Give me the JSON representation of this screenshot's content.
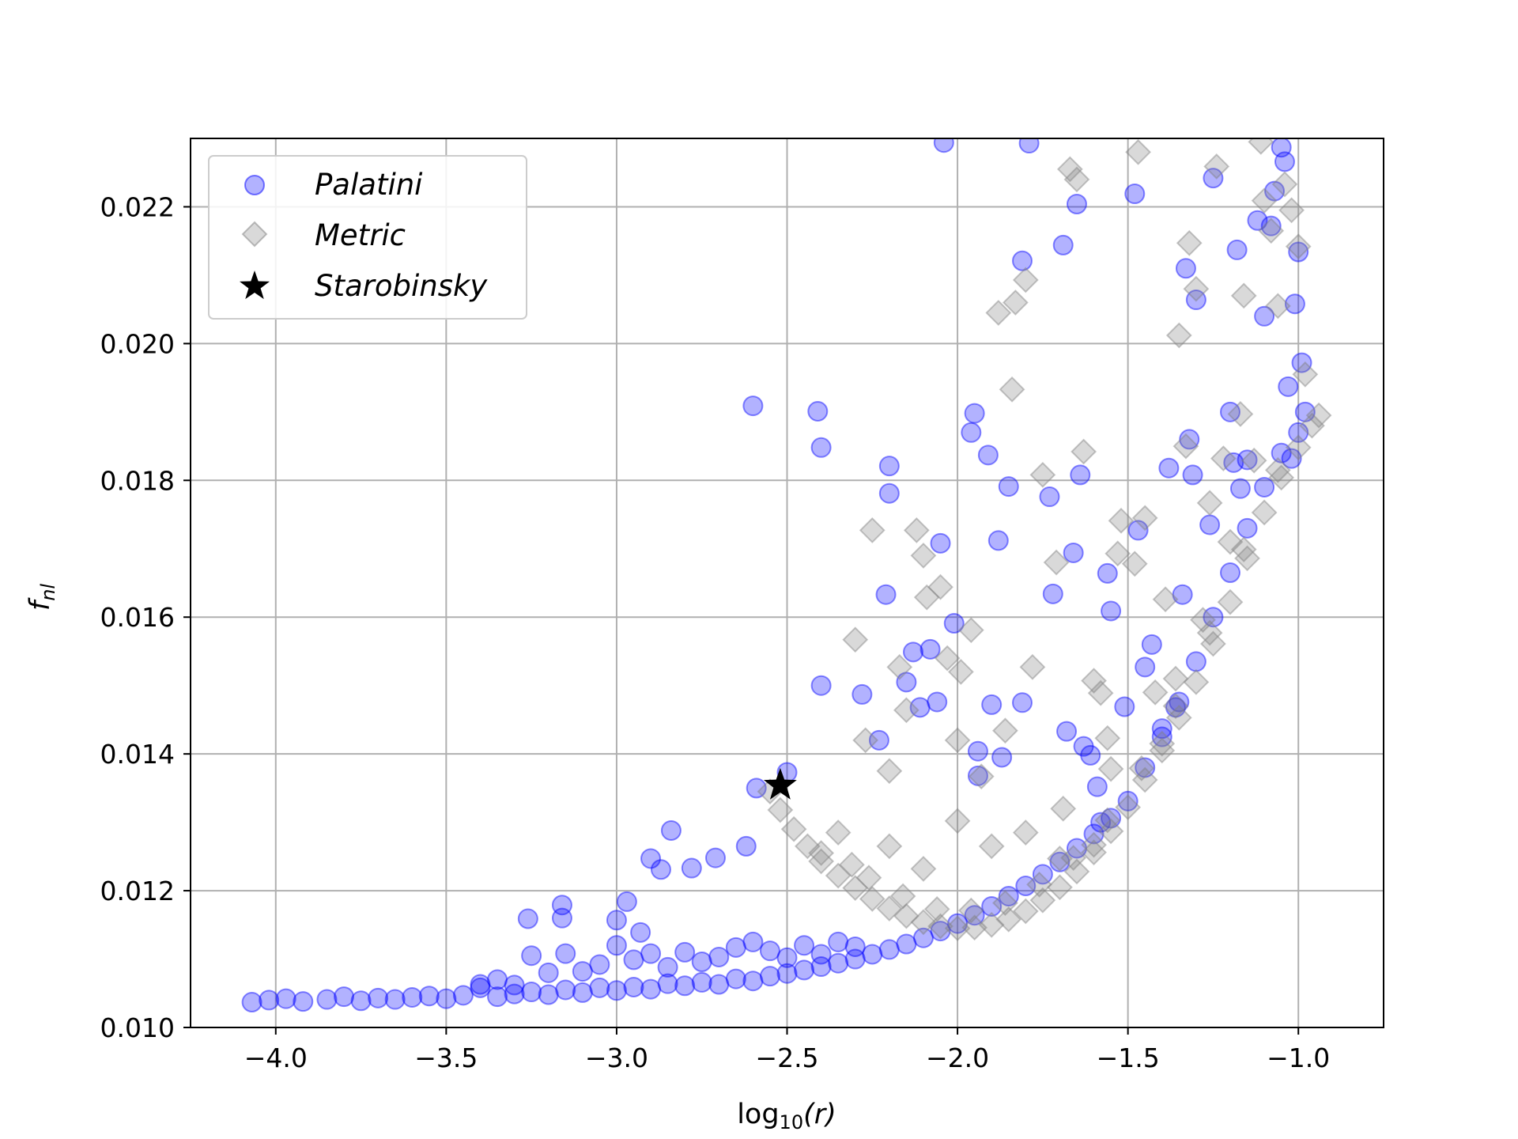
{
  "chart_data": {
    "type": "scatter",
    "title": "",
    "xlabel_main": "log",
    "xlabel_sub": "10",
    "xlabel_arg": "(r)",
    "ylabel_main": "f",
    "ylabel_sub": "nl",
    "xlim": [
      -4.25,
      -0.75
    ],
    "ylim": [
      0.01,
      0.023
    ],
    "xticks": [
      -4.0,
      -3.5,
      -3.0,
      -2.5,
      -2.0,
      -1.5,
      -1.0
    ],
    "xtick_labels": [
      "−4.0",
      "−3.5",
      "−3.0",
      "−2.5",
      "−2.0",
      "−1.5",
      "−1.0"
    ],
    "yticks": [
      0.01,
      0.012,
      0.014,
      0.016,
      0.018,
      0.02,
      0.022
    ],
    "ytick_labels": [
      "0.010",
      "0.012",
      "0.014",
      "0.016",
      "0.018",
      "0.020",
      "0.022"
    ],
    "grid": true,
    "legend_position": "top-left",
    "colors": {
      "palatini": "#0000ff",
      "metric": "#808080",
      "starobinsky": "#000000"
    },
    "series": [
      {
        "name": "Palatini",
        "marker": "circle",
        "points": [
          [
            -4.07,
            0.01037
          ],
          [
            -4.02,
            0.0104
          ],
          [
            -3.97,
            0.01042
          ],
          [
            -3.92,
            0.01038
          ],
          [
            -3.85,
            0.01041
          ],
          [
            -3.8,
            0.01045
          ],
          [
            -3.75,
            0.01039
          ],
          [
            -3.7,
            0.01043
          ],
          [
            -3.65,
            0.01041
          ],
          [
            -3.6,
            0.01044
          ],
          [
            -3.55,
            0.01046
          ],
          [
            -3.5,
            0.01042
          ],
          [
            -3.45,
            0.01047
          ],
          [
            -3.4,
            0.01063
          ],
          [
            -3.35,
            0.01045
          ],
          [
            -3.3,
            0.01049
          ],
          [
            -3.25,
            0.01052
          ],
          [
            -3.2,
            0.01048
          ],
          [
            -3.15,
            0.01055
          ],
          [
            -3.1,
            0.01051
          ],
          [
            -3.05,
            0.01058
          ],
          [
            -3.0,
            0.01054
          ],
          [
            -2.95,
            0.01059
          ],
          [
            -2.9,
            0.01056
          ],
          [
            -2.85,
            0.01064
          ],
          [
            -2.8,
            0.01061
          ],
          [
            -2.75,
            0.01066
          ],
          [
            -2.7,
            0.01063
          ],
          [
            -2.65,
            0.01071
          ],
          [
            -2.6,
            0.01068
          ],
          [
            -2.55,
            0.01075
          ],
          [
            -2.5,
            0.01079
          ],
          [
            -2.45,
            0.01084
          ],
          [
            -2.4,
            0.01089
          ],
          [
            -2.35,
            0.01094
          ],
          [
            -2.3,
            0.011
          ],
          [
            -2.25,
            0.01107
          ],
          [
            -2.2,
            0.01114
          ],
          [
            -2.15,
            0.01122
          ],
          [
            -2.1,
            0.01131
          ],
          [
            -2.05,
            0.01141
          ],
          [
            -2.0,
            0.01152
          ],
          [
            -1.95,
            0.01164
          ],
          [
            -1.9,
            0.01177
          ],
          [
            -1.85,
            0.01192
          ],
          [
            -1.8,
            0.01207
          ],
          [
            -1.75,
            0.01224
          ],
          [
            -1.7,
            0.01242
          ],
          [
            -1.65,
            0.01262
          ],
          [
            -1.6,
            0.01283
          ],
          [
            -1.55,
            0.01306
          ],
          [
            -1.5,
            0.01331
          ],
          [
            -3.26,
            0.01159
          ],
          [
            -3.16,
            0.01179
          ],
          [
            -3.16,
            0.0116
          ],
          [
            -3.0,
            0.01157
          ],
          [
            -2.97,
            0.01184
          ],
          [
            -2.93,
            0.01139
          ],
          [
            -2.9,
            0.01247
          ],
          [
            -2.87,
            0.01231
          ],
          [
            -2.84,
            0.01288
          ],
          [
            -2.78,
            0.01233
          ],
          [
            -2.71,
            0.01248
          ],
          [
            -2.62,
            0.01265
          ],
          [
            -2.59,
            0.0135
          ],
          [
            -2.5,
            0.01373
          ],
          [
            -2.6,
            0.01909
          ],
          [
            -2.41,
            0.01901
          ],
          [
            -2.4,
            0.01848
          ],
          [
            -2.4,
            0.015
          ],
          [
            -2.28,
            0.01487
          ],
          [
            -2.23,
            0.0142
          ],
          [
            -2.21,
            0.01633
          ],
          [
            -2.2,
            0.01821
          ],
          [
            -2.2,
            0.01781
          ],
          [
            -2.15,
            0.01505
          ],
          [
            -2.13,
            0.01549
          ],
          [
            -2.11,
            0.01468
          ],
          [
            -2.08,
            0.01553
          ],
          [
            -2.06,
            0.01476
          ],
          [
            -2.05,
            0.01708
          ],
          [
            -2.01,
            0.01591
          ],
          [
            -2.04,
            0.02294
          ],
          [
            -1.96,
            0.0187
          ],
          [
            -1.95,
            0.01898
          ],
          [
            -1.94,
            0.01404
          ],
          [
            -1.94,
            0.01368
          ],
          [
            -1.91,
            0.01837
          ],
          [
            -1.9,
            0.01472
          ],
          [
            -1.88,
            0.01712
          ],
          [
            -1.87,
            0.01395
          ],
          [
            -1.85,
            0.01791
          ],
          [
            -1.81,
            0.01475
          ],
          [
            -1.81,
            0.02121
          ],
          [
            -1.79,
            0.02293
          ],
          [
            -1.73,
            0.01776
          ],
          [
            -1.72,
            0.01634
          ],
          [
            -1.69,
            0.02144
          ],
          [
            -1.68,
            0.01433
          ],
          [
            -1.66,
            0.01694
          ],
          [
            -1.65,
            0.02204
          ],
          [
            -1.64,
            0.01808
          ],
          [
            -1.63,
            0.01411
          ],
          [
            -1.61,
            0.01398
          ],
          [
            -1.59,
            0.01352
          ],
          [
            -1.58,
            0.013
          ],
          [
            -1.56,
            0.01664
          ],
          [
            -1.55,
            0.01609
          ],
          [
            -1.51,
            0.01469
          ],
          [
            -1.48,
            0.02219
          ],
          [
            -1.47,
            0.01727
          ],
          [
            -1.45,
            0.01527
          ],
          [
            -1.43,
            0.0156
          ],
          [
            -1.4,
            0.01437
          ],
          [
            -1.38,
            0.01818
          ],
          [
            -1.36,
            0.01468
          ],
          [
            -1.34,
            0.01633
          ],
          [
            -1.33,
            0.0211
          ],
          [
            -1.32,
            0.0186
          ],
          [
            -1.31,
            0.01808
          ],
          [
            -1.3,
            0.02064
          ],
          [
            -1.26,
            0.01735
          ],
          [
            -1.25,
            0.02242
          ],
          [
            -1.2,
            0.019
          ],
          [
            -1.19,
            0.01826
          ],
          [
            -1.18,
            0.02137
          ],
          [
            -1.17,
            0.01788
          ],
          [
            -1.15,
            0.0183
          ],
          [
            -1.12,
            0.0218
          ],
          [
            -1.1,
            0.0204
          ],
          [
            -1.08,
            0.02172
          ],
          [
            -1.07,
            0.02223
          ],
          [
            -1.05,
            0.02287
          ],
          [
            -1.04,
            0.02266
          ],
          [
            -1.03,
            0.01937
          ],
          [
            -1.02,
            0.01832
          ],
          [
            -1.01,
            0.02058
          ],
          [
            -1.0,
            0.02134
          ],
          [
            -0.99,
            0.01972
          ],
          [
            -0.98,
            0.019
          ],
          [
            -1.45,
            0.0138
          ],
          [
            -1.4,
            0.01425
          ],
          [
            -1.35,
            0.01476
          ],
          [
            -1.3,
            0.01535
          ],
          [
            -1.25,
            0.016
          ],
          [
            -1.2,
            0.01665
          ],
          [
            -1.15,
            0.0173
          ],
          [
            -1.1,
            0.0179
          ],
          [
            -1.05,
            0.0184
          ],
          [
            -1.0,
            0.0187
          ],
          [
            -3.3,
            0.01062
          ],
          [
            -3.25,
            0.01105
          ],
          [
            -3.15,
            0.01108
          ],
          [
            -3.1,
            0.01082
          ],
          [
            -3.05,
            0.01092
          ],
          [
            -3.0,
            0.0112
          ],
          [
            -2.95,
            0.01099
          ],
          [
            -2.9,
            0.01108
          ],
          [
            -2.85,
            0.01088
          ],
          [
            -2.8,
            0.0111
          ],
          [
            -2.75,
            0.01096
          ],
          [
            -2.7,
            0.01103
          ],
          [
            -2.65,
            0.01117
          ],
          [
            -2.6,
            0.01125
          ],
          [
            -2.55,
            0.01112
          ],
          [
            -2.5,
            0.01102
          ],
          [
            -2.45,
            0.0112
          ],
          [
            -2.4,
            0.01107
          ],
          [
            -2.35,
            0.01125
          ],
          [
            -2.3,
            0.01118
          ],
          [
            -3.4,
            0.01058
          ],
          [
            -3.2,
            0.0108
          ],
          [
            -3.35,
            0.0107
          ]
        ]
      },
      {
        "name": "Metric",
        "marker": "diamond",
        "points": [
          [
            -2.55,
            0.01345
          ],
          [
            -2.52,
            0.01318
          ],
          [
            -2.48,
            0.0129
          ],
          [
            -2.44,
            0.01265
          ],
          [
            -2.4,
            0.01243
          ],
          [
            -2.35,
            0.01222
          ],
          [
            -2.3,
            0.01204
          ],
          [
            -2.25,
            0.01188
          ],
          [
            -2.2,
            0.01174
          ],
          [
            -2.15,
            0.01163
          ],
          [
            -2.1,
            0.01154
          ],
          [
            -2.05,
            0.01148
          ],
          [
            -2.0,
            0.01145
          ],
          [
            -1.95,
            0.01146
          ],
          [
            -1.9,
            0.0115
          ],
          [
            -1.85,
            0.01158
          ],
          [
            -1.8,
            0.0117
          ],
          [
            -1.75,
            0.01186
          ],
          [
            -1.7,
            0.01205
          ],
          [
            -1.65,
            0.01228
          ],
          [
            -1.6,
            0.01256
          ],
          [
            -1.55,
            0.01287
          ],
          [
            -1.5,
            0.01322
          ],
          [
            -1.45,
            0.01362
          ],
          [
            -1.4,
            0.01405
          ],
          [
            -1.35,
            0.01453
          ],
          [
            -1.3,
            0.01505
          ],
          [
            -1.25,
            0.01561
          ],
          [
            -1.2,
            0.01622
          ],
          [
            -1.15,
            0.01686
          ],
          [
            -1.1,
            0.01753
          ],
          [
            -1.05,
            0.01804
          ],
          [
            -1.0,
            0.01848
          ],
          [
            -0.96,
            0.0188
          ],
          [
            -0.94,
            0.01895
          ],
          [
            -2.31,
            0.01238
          ],
          [
            -2.26,
            0.01219
          ],
          [
            -2.16,
            0.01192
          ],
          [
            -2.06,
            0.01173
          ],
          [
            -1.96,
            0.01171
          ],
          [
            -1.86,
            0.01182
          ],
          [
            -1.76,
            0.01209
          ],
          [
            -1.66,
            0.01248
          ],
          [
            -1.56,
            0.01303
          ],
          [
            -1.46,
            0.01379
          ],
          [
            -1.36,
            0.0147
          ],
          [
            -1.26,
            0.01577
          ],
          [
            -1.16,
            0.01699
          ],
          [
            -1.06,
            0.01815
          ],
          [
            -2.3,
            0.01567
          ],
          [
            -2.27,
            0.0142
          ],
          [
            -2.25,
            0.01727
          ],
          [
            -2.2,
            0.01375
          ],
          [
            -2.17,
            0.01527
          ],
          [
            -2.15,
            0.01464
          ],
          [
            -2.12,
            0.01727
          ],
          [
            -2.1,
            0.0169
          ],
          [
            -2.09,
            0.01629
          ],
          [
            -2.05,
            0.01644
          ],
          [
            -2.03,
            0.0154
          ],
          [
            -2.0,
            0.0142
          ],
          [
            -1.99,
            0.0152
          ],
          [
            -1.96,
            0.01581
          ],
          [
            -1.93,
            0.01367
          ],
          [
            -1.88,
            0.02045
          ],
          [
            -1.86,
            0.01434
          ],
          [
            -1.84,
            0.01933
          ],
          [
            -1.83,
            0.0206
          ],
          [
            -1.8,
            0.02093
          ],
          [
            -1.78,
            0.01527
          ],
          [
            -1.75,
            0.01808
          ],
          [
            -1.71,
            0.0168
          ],
          [
            -1.69,
            0.0132
          ],
          [
            -1.67,
            0.02255
          ],
          [
            -1.65,
            0.0224
          ],
          [
            -1.63,
            0.01842
          ],
          [
            -1.6,
            0.01507
          ],
          [
            -1.58,
            0.01489
          ],
          [
            -1.56,
            0.01423
          ],
          [
            -1.53,
            0.01693
          ],
          [
            -1.52,
            0.01741
          ],
          [
            -1.48,
            0.01678
          ],
          [
            -1.47,
            0.0228
          ],
          [
            -1.45,
            0.01745
          ],
          [
            -1.42,
            0.0149
          ],
          [
            -1.39,
            0.01626
          ],
          [
            -1.36,
            0.0151
          ],
          [
            -1.33,
            0.0185
          ],
          [
            -1.32,
            0.02147
          ],
          [
            -1.3,
            0.0208
          ],
          [
            -1.28,
            0.01596
          ],
          [
            -1.26,
            0.01767
          ],
          [
            -1.24,
            0.02259
          ],
          [
            -1.22,
            0.01832
          ],
          [
            -1.2,
            0.0171
          ],
          [
            -1.17,
            0.01897
          ],
          [
            -1.16,
            0.0207
          ],
          [
            -1.13,
            0.01829
          ],
          [
            -1.11,
            0.02295
          ],
          [
            -1.1,
            0.02209
          ],
          [
            -1.08,
            0.02165
          ],
          [
            -1.06,
            0.02055
          ],
          [
            -1.04,
            0.02233
          ],
          [
            -1.02,
            0.02195
          ],
          [
            -1.0,
            0.02142
          ],
          [
            -0.98,
            0.01955
          ],
          [
            -1.35,
            0.02012
          ],
          [
            -1.4,
            0.01415
          ],
          [
            -1.55,
            0.01378
          ],
          [
            -1.6,
            0.01267
          ],
          [
            -1.7,
            0.01247
          ],
          [
            -1.8,
            0.01285
          ],
          [
            -1.9,
            0.01265
          ],
          [
            -2.0,
            0.01302
          ],
          [
            -2.1,
            0.01232
          ],
          [
            -2.2,
            0.01265
          ],
          [
            -2.35,
            0.01285
          ],
          [
            -2.4,
            0.01255
          ]
        ]
      },
      {
        "name": "Starobinsky",
        "marker": "star",
        "points": [
          [
            -2.52,
            0.01354
          ]
        ]
      }
    ]
  }
}
